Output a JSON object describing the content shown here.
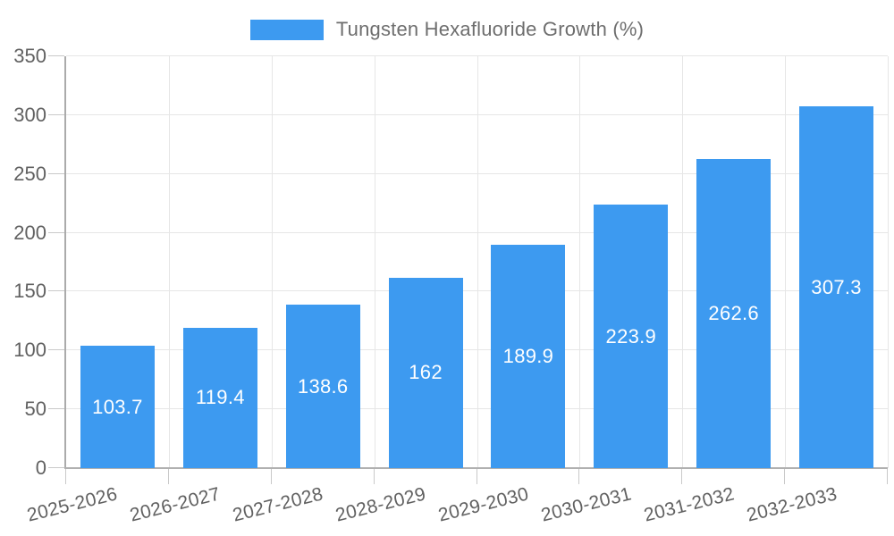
{
  "legend": {
    "label": "Tungsten Hexafluoride Growth (%)"
  },
  "chart_data": {
    "type": "bar",
    "title": "Tungsten Hexafluoride Growth (%)",
    "categories": [
      "2025-2026",
      "2026-2027",
      "2027-2028",
      "2028-2029",
      "2029-2030",
      "2030-2031",
      "2031-2032",
      "2032-2033"
    ],
    "values": [
      103.7,
      119.4,
      138.6,
      162,
      189.9,
      223.9,
      262.6,
      307.3
    ],
    "value_labels": [
      "103.7",
      "119.4",
      "138.6",
      "162",
      "189.9",
      "223.9",
      "262.6",
      "307.3"
    ],
    "xlabel": "",
    "ylabel": "",
    "ylim": [
      0,
      350
    ],
    "yticks": [
      0,
      50,
      100,
      150,
      200,
      250,
      300,
      350
    ],
    "grid": true,
    "legend_position": "top",
    "colors": {
      "bar": "#3d9af0",
      "grid": "#e6e6e6",
      "y_axis": "#ababab",
      "x_axis": "#b0b0b0",
      "tick": "#c9c9c9",
      "tick_label": "#616161",
      "legend_text": "#6e6e6e",
      "value_label": "#ffffff",
      "background": "#ffffff"
    }
  }
}
